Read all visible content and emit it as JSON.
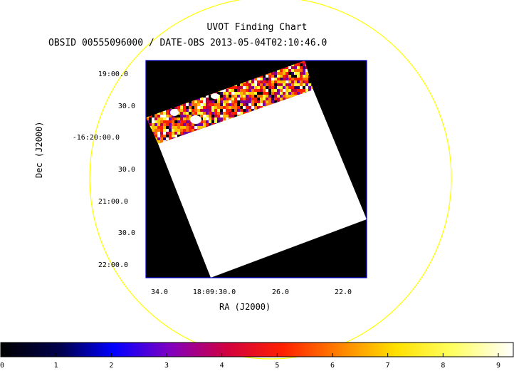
{
  "chart": {
    "title": "UVOT Finding Chart",
    "subtitle": "OBSID 00555096000 / DATE-OBS 2013-05-04T02:10:46.0",
    "xlabel": "RA (J2000)",
    "ylabel": "Dec (J2000)",
    "y_ticks": [
      "19:00.0",
      "30.0",
      "-16:20:00.0",
      "30.0",
      "21:00.0",
      "30.0",
      "22:00.0"
    ],
    "x_ticks": [
      "34.0",
      "18:09:30.0",
      "26.0",
      "22.0"
    ],
    "colorbar_ticks": [
      "0",
      "1",
      "2",
      "3",
      "4",
      "5",
      "6",
      "7",
      "8",
      "9"
    ]
  },
  "colors": {
    "circle": "#ffff00",
    "frame": "#0000cc",
    "background": "#000000",
    "exposure": "#ffffff"
  }
}
